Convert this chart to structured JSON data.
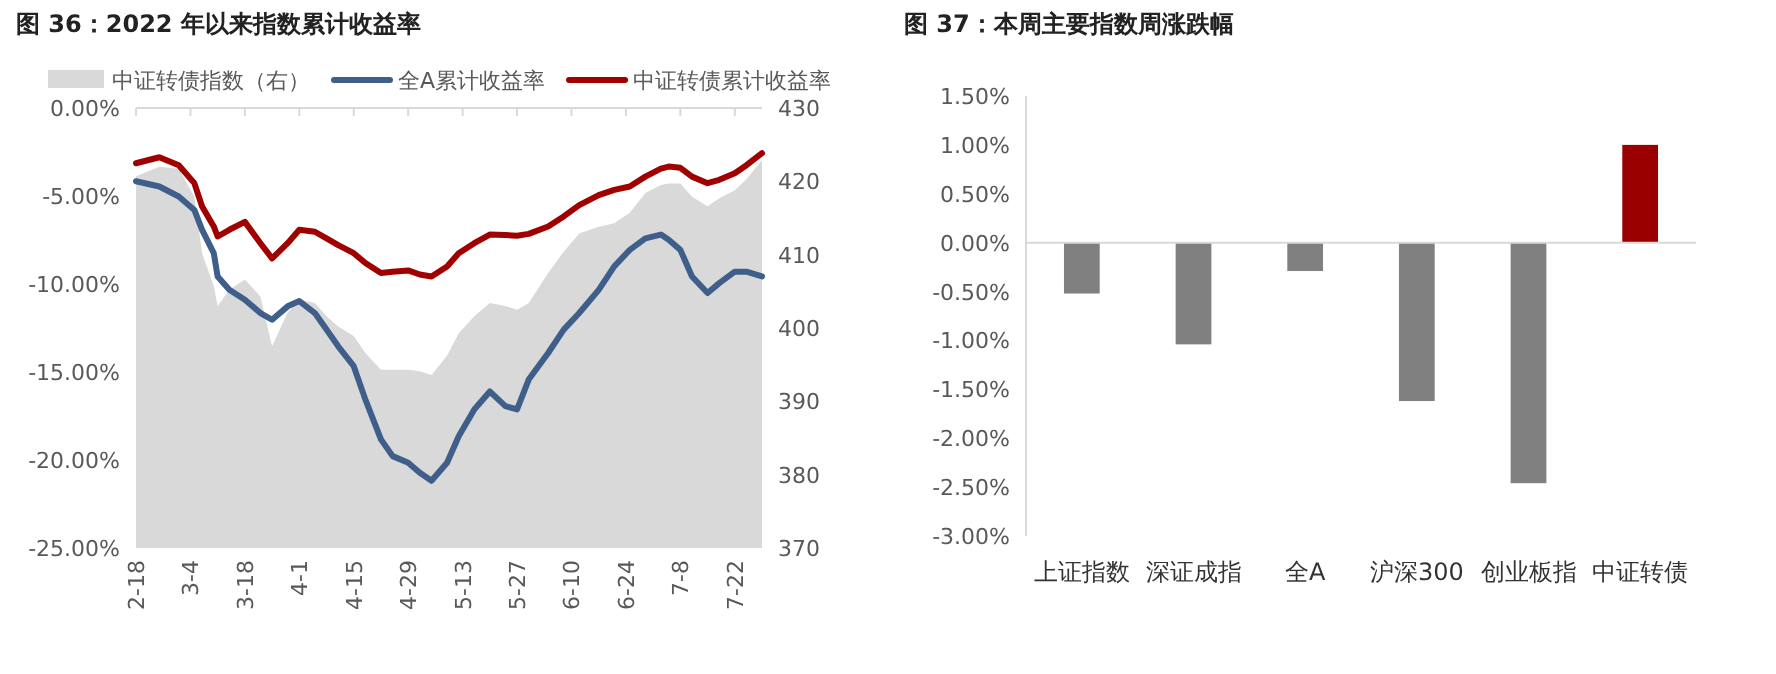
{
  "chart_data": [
    {
      "type": "line",
      "title": "图 36：2022 年以来指数累计收益率",
      "x": [
        "--02-18",
        "--02-24",
        "--03-01",
        "--03-05",
        "--03-07",
        "--03-10",
        "--03-11",
        "--03-14",
        "--03-18",
        "--03-22",
        "--03-25",
        "--03-29",
        "--04-01",
        "--04-05",
        "--04-08",
        "--04-11",
        "--04-15",
        "--04-18",
        "--04-22",
        "--04-25",
        "--04-29",
        "--05-02",
        "--05-05",
        "--05-09",
        "--05-12",
        "--05-16",
        "--05-20",
        "--05-24",
        "--05-27",
        "--05-30",
        "--06-04",
        "--06-08",
        "--06-12",
        "--06-17",
        "--06-21",
        "--06-25",
        "--06-29",
        "--07-03",
        "--07-05",
        "--07-08",
        "--07-11",
        "--07-15",
        "--07-18",
        "--07-22",
        "--07-25",
        "--07-29"
      ],
      "series": [
        {
          "name": "中证转债指数（右）",
          "type": "area",
          "axis": "y2",
          "color": "#d9d9d9",
          "values": [
            420.7,
            422.0,
            421.7,
            417.9,
            410.2,
            405.7,
            403.0,
            405.2,
            406.6,
            404.3,
            397.5,
            402.1,
            403.9,
            403.4,
            401.6,
            400.2,
            398.9,
            396.6,
            394.3,
            394.3,
            394.3,
            394.1,
            393.6,
            396.2,
            399.3,
            401.6,
            403.4,
            403.0,
            402.5,
            403.4,
            407.5,
            410.4,
            412.9,
            413.8,
            414.3,
            415.7,
            418.4,
            419.5,
            419.7,
            419.7,
            417.9,
            416.6,
            417.7,
            418.8,
            420.3,
            422.9
          ]
        },
        {
          "name": "全A累计收益率",
          "color": "#3f5f8a",
          "values": [
            -4.16,
            -4.46,
            -5.03,
            -5.79,
            -6.92,
            -8.25,
            -9.57,
            -10.33,
            -10.89,
            -11.65,
            -12.03,
            -11.27,
            -10.97,
            -11.65,
            -12.59,
            -13.54,
            -14.67,
            -16.57,
            -18.83,
            -19.78,
            -20.16,
            -20.73,
            -21.18,
            -20.16,
            -18.65,
            -17.13,
            -16.11,
            -16.94,
            -17.13,
            -15.43,
            -13.92,
            -12.59,
            -11.65,
            -10.33,
            -9.0,
            -8.06,
            -7.41,
            -7.19,
            -7.49,
            -8.06,
            -9.57,
            -10.51,
            -9.95,
            -9.3,
            -9.3,
            -9.57
          ]
        },
        {
          "name": "中证转债累计收益率",
          "color": "#a00000",
          "values": [
            -3.14,
            -2.8,
            -3.25,
            -4.27,
            -5.6,
            -6.73,
            -7.3,
            -6.92,
            -6.47,
            -7.68,
            -8.55,
            -7.68,
            -6.92,
            -7.03,
            -7.41,
            -7.79,
            -8.25,
            -8.81,
            -9.38,
            -9.3,
            -9.23,
            -9.46,
            -9.57,
            -9.0,
            -8.25,
            -7.68,
            -7.19,
            -7.22,
            -7.26,
            -7.15,
            -6.73,
            -6.16,
            -5.52,
            -4.95,
            -4.65,
            -4.46,
            -3.9,
            -3.44,
            -3.33,
            -3.4,
            -3.9,
            -4.27,
            -4.08,
            -3.71,
            -3.25,
            -2.57
          ]
        }
      ],
      "xlim": [
        "--02-18",
        "--07-29"
      ],
      "xticks": [
        {
          "value": "--02-18",
          "label": "2-18"
        },
        {
          "value": "--03-04",
          "label": "3-4"
        },
        {
          "value": "--03-18",
          "label": "3-18"
        },
        {
          "value": "--04-01",
          "label": "4-1"
        },
        {
          "value": "--04-15",
          "label": "4-15"
        },
        {
          "value": "--04-29",
          "label": "4-29"
        },
        {
          "value": "--05-13",
          "label": "5-13"
        },
        {
          "value": "--05-27",
          "label": "5-27"
        },
        {
          "value": "--06-10",
          "label": "6-10"
        },
        {
          "value": "--06-24",
          "label": "6-24"
        },
        {
          "value": "--07-08",
          "label": "7-8"
        },
        {
          "value": "--07-22",
          "label": "7-22"
        }
      ],
      "ylim": [
        -25,
        0
      ],
      "yticks": [
        {
          "value": 0,
          "label": "0.00%"
        },
        {
          "value": -5,
          "label": "-5.00%"
        },
        {
          "value": -10,
          "label": "-10.00%"
        },
        {
          "value": -15,
          "label": "-15.00%"
        },
        {
          "value": -20,
          "label": "-20.00%"
        },
        {
          "value": -25,
          "label": "-25.00%"
        }
      ],
      "y2lim": [
        370,
        430
      ],
      "y2ticks": [
        370,
        380,
        390,
        400,
        410,
        420,
        430
      ],
      "legend": "top"
    },
    {
      "type": "bar",
      "title": "图 37：本周主要指数周涨跌幅",
      "categories": [
        "上证指数",
        "深证成指",
        "全A",
        "沪深300",
        "创业板指",
        "中证转债"
      ],
      "values": [
        -0.52,
        -1.04,
        -0.29,
        -1.62,
        -2.46,
        1.0
      ],
      "colors": [
        "#808080",
        "#808080",
        "#808080",
        "#808080",
        "#808080",
        "#9b0000"
      ],
      "ylim": [
        -3,
        1.5
      ],
      "yticks": [
        {
          "value": 1.5,
          "label": "1.50%"
        },
        {
          "value": 1,
          "label": "1.00%"
        },
        {
          "value": 0.5,
          "label": "0.50%"
        },
        {
          "value": 0,
          "label": "0.00%"
        },
        {
          "value": -0.5,
          "label": "-0.50%"
        },
        {
          "value": -1,
          "label": "-1.00%"
        },
        {
          "value": -1.5,
          "label": "-1.50%"
        },
        {
          "value": -2,
          "label": "-2.00%"
        },
        {
          "value": -2.5,
          "label": "-2.50%"
        },
        {
          "value": -3,
          "label": "-3.00%"
        }
      ],
      "tick_labels": true
    }
  ]
}
